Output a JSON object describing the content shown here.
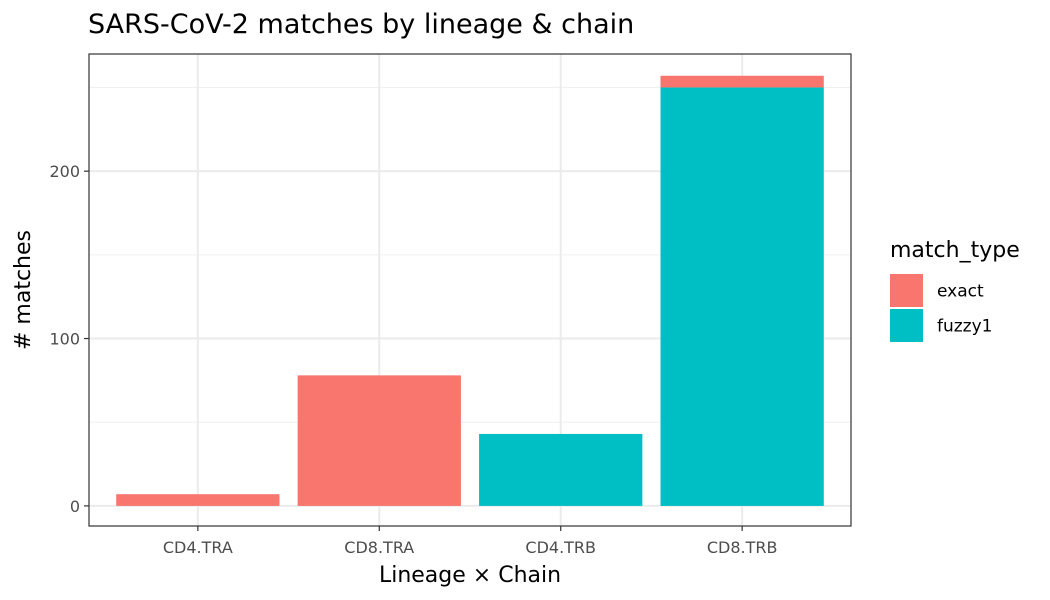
{
  "chart_data": {
    "type": "bar",
    "stacked": true,
    "title": "SARS-CoV-2 matches by lineage & chain",
    "xlabel": "Lineage × Chain",
    "ylabel": "# matches",
    "categories": [
      "CD4.TRA",
      "CD8.TRA",
      "CD4.TRB",
      "CD8.TRB"
    ],
    "series": [
      {
        "name": "exact",
        "color": "#F8766D",
        "values": [
          7,
          78,
          0,
          7
        ]
      },
      {
        "name": "fuzzy1",
        "color": "#00BFC4",
        "values": [
          0,
          0,
          43,
          250
        ]
      }
    ],
    "ylim": [
      -12,
      270
    ],
    "yticks": [
      0,
      100,
      200
    ],
    "ytick_labels": [
      "0",
      "100",
      "200"
    ],
    "grid": true,
    "legend": {
      "title": "match_type",
      "position": "right"
    }
  }
}
